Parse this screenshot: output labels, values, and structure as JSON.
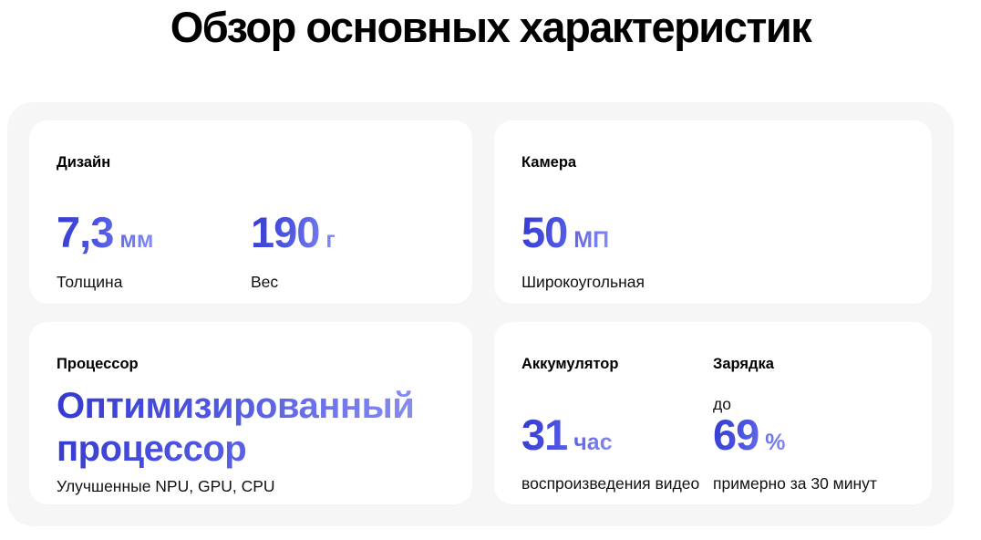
{
  "page": {
    "title": "Обзор основных характеристик"
  },
  "colors": {
    "accent_gradient_start": "#3439cf",
    "accent_gradient_mid": "#5058e2",
    "accent_gradient_end": "#8b91f4",
    "container_background": "#f6f6f7",
    "card_background": "#ffffff",
    "text": "#000000"
  },
  "cards": {
    "design": {
      "heading": "Дизайн",
      "stats": [
        {
          "value": "7,3",
          "unit": "мм",
          "label": "Толщина"
        },
        {
          "value": "190",
          "unit": "г",
          "label": "Вес"
        }
      ]
    },
    "camera": {
      "heading": "Камера",
      "stats": [
        {
          "value": "50",
          "unit": "МП",
          "label": "Широкоугольная"
        }
      ]
    },
    "processor": {
      "heading": "Процессор",
      "highlight_line1": "Оптимизированный",
      "highlight_line2": "процессор",
      "caption": "Улучшенные NPU, GPU, CPU"
    },
    "battery": {
      "columns": [
        {
          "heading": "Аккумулятор",
          "prefix": "",
          "value": "31",
          "unit": "час",
          "caption": "воспроизведения видео"
        },
        {
          "heading": "Зарядка",
          "prefix": "до",
          "value": "69",
          "unit": "%",
          "caption": "примерно за 30 минут"
        }
      ]
    }
  }
}
